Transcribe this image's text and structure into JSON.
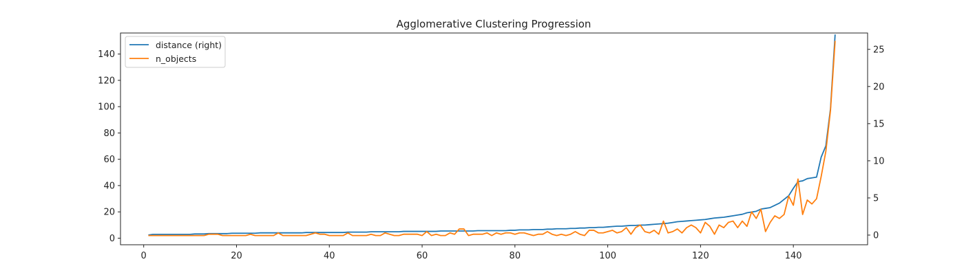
{
  "chart_data": {
    "type": "line",
    "title": "Agglomerative Clustering Progression",
    "xlabel": "",
    "ylabel_left": "",
    "ylabel_right": "",
    "xlim": [
      -5,
      156
    ],
    "ylim_left": [
      -5,
      156
    ],
    "ylim_right": [
      -1.3,
      27.2
    ],
    "xticks": [
      0,
      20,
      40,
      60,
      80,
      100,
      120,
      140
    ],
    "yticks_left": [
      0,
      20,
      40,
      60,
      80,
      100,
      120,
      140
    ],
    "yticks_right": [
      0,
      5,
      10,
      15,
      20,
      25
    ],
    "legend_position": "upper-left",
    "grid": false,
    "series": [
      {
        "name": "distance (right)",
        "axis": "right",
        "color": "#1f77b4",
        "x": [
          1,
          2,
          3,
          4,
          5,
          6,
          7,
          8,
          9,
          10,
          11,
          12,
          13,
          14,
          15,
          16,
          17,
          18,
          19,
          20,
          21,
          22,
          23,
          24,
          25,
          26,
          27,
          28,
          29,
          30,
          31,
          32,
          33,
          34,
          35,
          36,
          37,
          38,
          39,
          40,
          41,
          42,
          43,
          44,
          45,
          46,
          47,
          48,
          49,
          50,
          51,
          52,
          53,
          54,
          55,
          56,
          57,
          58,
          59,
          60,
          61,
          62,
          63,
          64,
          65,
          66,
          67,
          68,
          69,
          70,
          71,
          72,
          73,
          74,
          75,
          76,
          77,
          78,
          79,
          80,
          81,
          82,
          83,
          84,
          85,
          86,
          87,
          88,
          89,
          90,
          91,
          92,
          93,
          94,
          95,
          96,
          97,
          98,
          99,
          100,
          101,
          102,
          103,
          104,
          105,
          106,
          107,
          108,
          109,
          110,
          111,
          112,
          113,
          114,
          115,
          116,
          117,
          118,
          119,
          120,
          121,
          122,
          123,
          124,
          125,
          126,
          127,
          128,
          129,
          130,
          131,
          132,
          133,
          134,
          135,
          136,
          137,
          138,
          139,
          140,
          141,
          142,
          143,
          144,
          145,
          146,
          147,
          148,
          149
        ],
        "y": [
          0.0,
          0.1,
          0.1,
          0.1,
          0.1,
          0.1,
          0.1,
          0.1,
          0.1,
          0.1,
          0.15,
          0.15,
          0.15,
          0.2,
          0.2,
          0.2,
          0.2,
          0.2,
          0.25,
          0.25,
          0.25,
          0.25,
          0.25,
          0.25,
          0.3,
          0.3,
          0.3,
          0.3,
          0.3,
          0.3,
          0.3,
          0.3,
          0.3,
          0.3,
          0.35,
          0.35,
          0.35,
          0.35,
          0.35,
          0.35,
          0.35,
          0.35,
          0.35,
          0.4,
          0.4,
          0.4,
          0.4,
          0.4,
          0.45,
          0.45,
          0.45,
          0.45,
          0.45,
          0.45,
          0.45,
          0.5,
          0.5,
          0.5,
          0.5,
          0.5,
          0.5,
          0.5,
          0.5,
          0.55,
          0.55,
          0.55,
          0.55,
          0.55,
          0.55,
          0.55,
          0.55,
          0.6,
          0.6,
          0.6,
          0.6,
          0.6,
          0.6,
          0.6,
          0.65,
          0.65,
          0.7,
          0.7,
          0.7,
          0.75,
          0.75,
          0.75,
          0.8,
          0.8,
          0.85,
          0.85,
          0.85,
          0.9,
          0.9,
          0.95,
          0.95,
          1.0,
          1.0,
          1.05,
          1.05,
          1.1,
          1.15,
          1.2,
          1.2,
          1.25,
          1.3,
          1.3,
          1.35,
          1.35,
          1.4,
          1.45,
          1.5,
          1.55,
          1.6,
          1.7,
          1.8,
          1.85,
          1.9,
          1.95,
          2.0,
          2.05,
          2.1,
          2.2,
          2.3,
          2.35,
          2.4,
          2.5,
          2.6,
          2.7,
          2.8,
          3.0,
          3.1,
          3.2,
          3.5,
          3.6,
          3.7,
          4.0,
          4.3,
          4.8,
          5.3,
          6.3,
          7.2,
          7.3,
          7.6,
          7.7,
          7.8,
          10.5,
          12.0,
          17.0,
          27.0
        ]
      },
      {
        "name": "n_objects",
        "axis": "left",
        "color": "#ff7f0e",
        "x": [
          1,
          2,
          3,
          4,
          5,
          6,
          7,
          8,
          9,
          10,
          11,
          12,
          13,
          14,
          15,
          16,
          17,
          18,
          19,
          20,
          21,
          22,
          23,
          24,
          25,
          26,
          27,
          28,
          29,
          30,
          31,
          32,
          33,
          34,
          35,
          36,
          37,
          38,
          39,
          40,
          41,
          42,
          43,
          44,
          45,
          46,
          47,
          48,
          49,
          50,
          51,
          52,
          53,
          54,
          55,
          56,
          57,
          58,
          59,
          60,
          61,
          62,
          63,
          64,
          65,
          66,
          67,
          68,
          69,
          70,
          71,
          72,
          73,
          74,
          75,
          76,
          77,
          78,
          79,
          80,
          81,
          82,
          83,
          84,
          85,
          86,
          87,
          88,
          89,
          90,
          91,
          92,
          93,
          94,
          95,
          96,
          97,
          98,
          99,
          100,
          101,
          102,
          103,
          104,
          105,
          106,
          107,
          108,
          109,
          110,
          111,
          112,
          113,
          114,
          115,
          116,
          117,
          118,
          119,
          120,
          121,
          122,
          123,
          124,
          125,
          126,
          127,
          128,
          129,
          130,
          131,
          132,
          133,
          134,
          135,
          136,
          137,
          138,
          139,
          140,
          141,
          142,
          143,
          144,
          145,
          146,
          147,
          148,
          149
        ],
        "y": [
          2,
          2,
          2,
          2,
          2,
          2,
          2,
          2,
          2,
          2,
          2,
          2,
          2,
          3,
          3,
          3,
          2,
          2,
          2,
          2,
          2,
          2,
          3,
          2,
          2,
          2,
          2,
          2,
          4,
          2,
          2,
          2,
          2,
          2,
          2,
          3,
          4,
          3,
          3,
          2,
          2,
          2,
          2,
          4,
          2,
          2,
          2,
          2,
          3,
          2,
          2,
          4,
          3,
          2,
          2,
          3,
          3,
          3,
          3,
          2,
          5,
          2,
          3,
          2,
          2,
          4,
          3,
          7,
          7,
          2,
          3,
          3,
          3,
          4,
          2,
          4,
          3,
          4,
          4,
          3,
          4,
          4,
          3,
          2,
          3,
          3,
          5,
          3,
          2,
          3,
          2,
          3,
          5,
          3,
          2,
          6,
          6,
          4,
          4,
          5,
          6,
          4,
          5,
          8,
          3,
          8,
          10,
          5,
          4,
          6,
          3,
          13,
          4,
          5,
          7,
          4,
          8,
          10,
          8,
          4,
          12,
          9,
          3,
          10,
          8,
          12,
          13,
          8,
          13,
          9,
          20,
          15,
          22,
          5,
          12,
          17,
          15,
          18,
          32,
          25,
          45,
          18,
          29,
          26,
          30,
          47,
          66,
          97,
          150
        ]
      }
    ]
  }
}
